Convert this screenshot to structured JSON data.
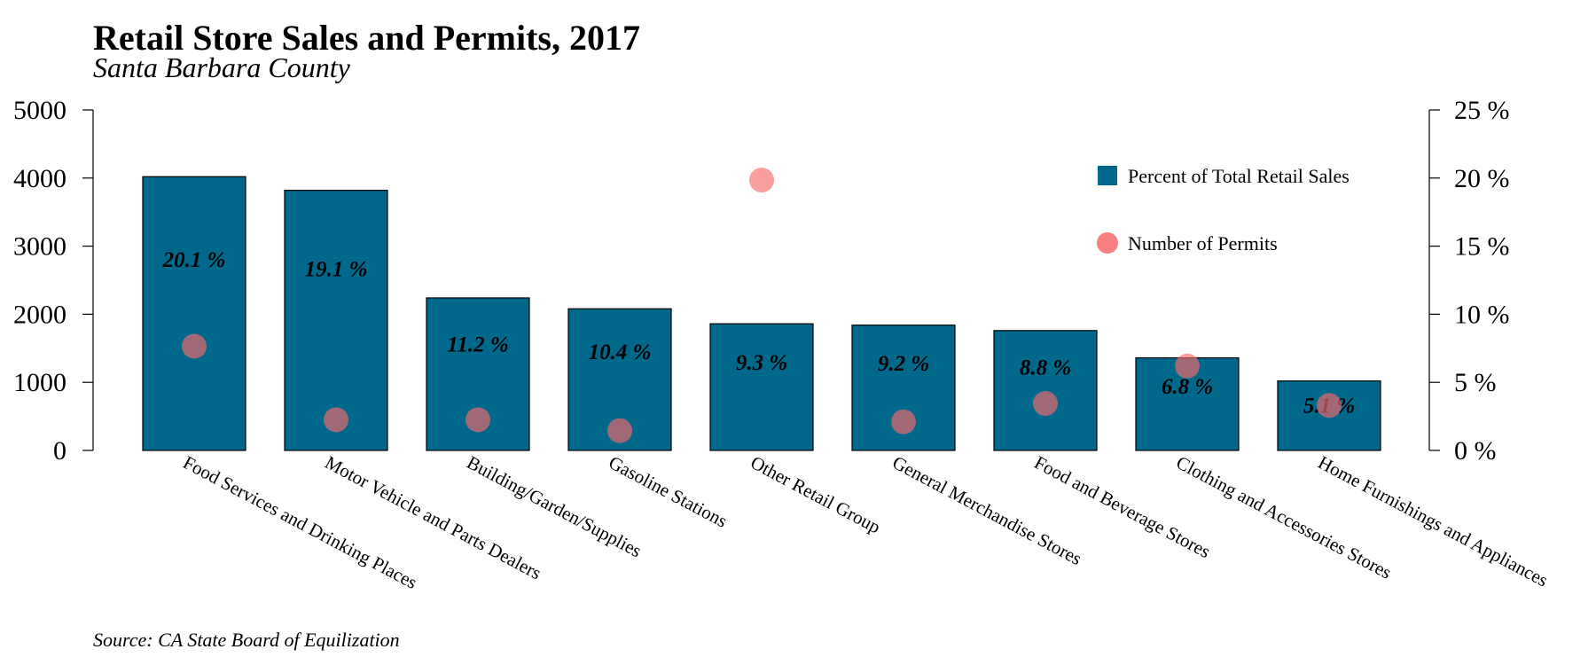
{
  "chart_data": {
    "type": "bar",
    "title": "Retail Store Sales and Permits, 2017",
    "subtitle": "Santa Barbara County",
    "source": "Source: CA State Board of Equilization",
    "categories": [
      "Food Services and Drinking Places",
      "Motor Vehicle and Parts Dealers",
      "Building/Garden/Supplies",
      "Gasoline Stations",
      "Other Retail Group",
      "General Merchandise Stores",
      "Food and Beverage Stores",
      "Clothing and Accessories Stores",
      "Home Furnishings and Appliances"
    ],
    "series": [
      {
        "name": "Percent of Total Retail Sales",
        "type": "bar",
        "axis": "right",
        "values": [
          20.1,
          19.1,
          11.2,
          10.4,
          9.3,
          9.2,
          8.8,
          6.8,
          5.1
        ],
        "labels": [
          "20.1 %",
          "19.1 %",
          "11.2 %",
          "10.4 %",
          "9.3 %",
          "9.2 %",
          "8.8 %",
          "6.8 %",
          "5.1 %"
        ],
        "color": "#00688b"
      },
      {
        "name": "Number of Permits",
        "type": "scatter",
        "axis": "left",
        "values": [
          1530,
          450,
          450,
          290,
          3970,
          420,
          690,
          1240,
          660
        ],
        "color": "#f76a6a"
      }
    ],
    "left_axis": {
      "ylim": [
        0,
        5000
      ],
      "ticks": [
        "0",
        "1000",
        "2000",
        "3000",
        "4000",
        "5000"
      ]
    },
    "right_axis": {
      "ylim": [
        0,
        25
      ],
      "ticks": [
        "0 %",
        "5 %",
        "10 %",
        "15 %",
        "20 %",
        "25 %"
      ]
    },
    "grid": false,
    "legend_position": "top-right"
  }
}
